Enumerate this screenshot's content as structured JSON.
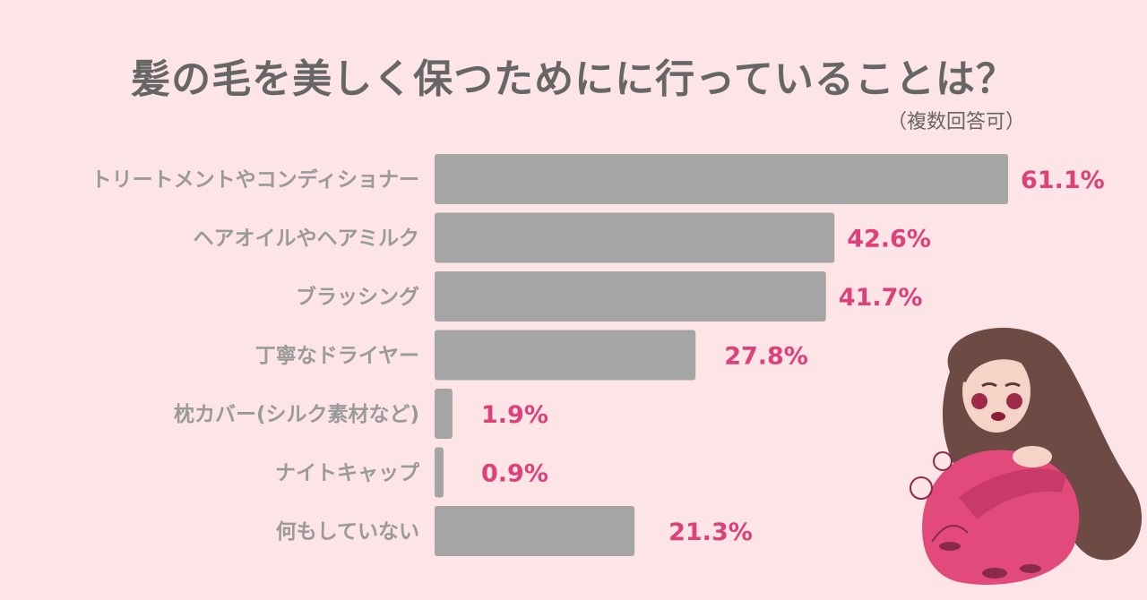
{
  "title": "髪の毛を美しく保つためにに行っていることは？",
  "subtitle": "（複数回答可）",
  "chart_data": {
    "type": "bar",
    "orientation": "horizontal",
    "title": "髪の毛を美しく保つためにに行っていることは？",
    "subtitle": "（複数回答可）",
    "categories": [
      "トリートメントやコンディショナー",
      "ヘアオイルやヘアミルク",
      "ブラッシング",
      "丁寧なドライヤー",
      "枕カバー(シルク素材など)",
      "ナイトキャップ",
      "何もしていない"
    ],
    "values": [
      61.1,
      42.6,
      41.7,
      27.8,
      1.9,
      0.9,
      21.3
    ],
    "value_labels": [
      "61.1%",
      "42.6%",
      "41.7%",
      "27.8%",
      "1.9%",
      "0.9%",
      "21.3%"
    ],
    "unit": "%",
    "xlim": [
      0,
      61.1
    ],
    "grid": false,
    "legend": "none",
    "colors": {
      "bar": "#a5a5a5",
      "value_label": "#e0407a",
      "category_label": "#9a9a9a",
      "background": "#fde4e6"
    }
  },
  "illustration": {
    "icon": "woman-long-hair-illustration"
  }
}
